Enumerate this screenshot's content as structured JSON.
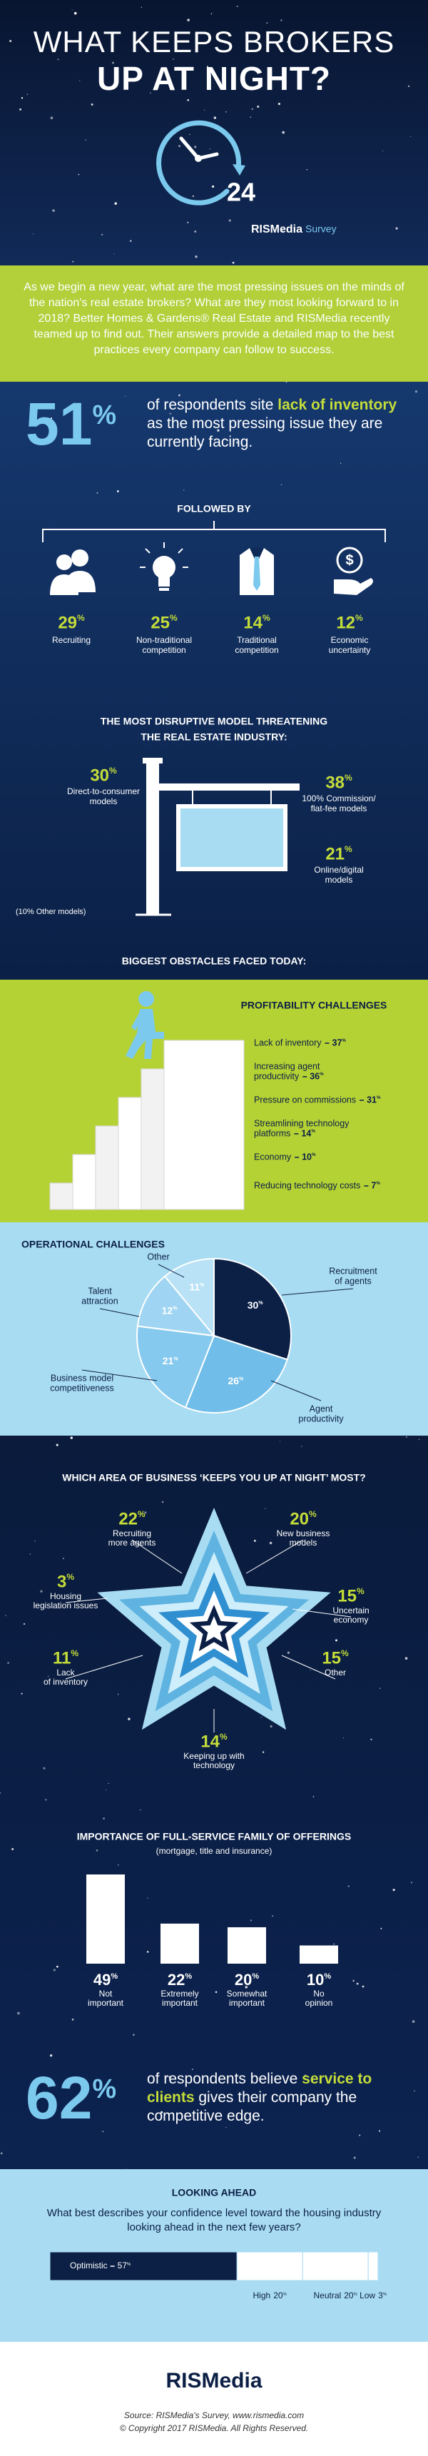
{
  "header": {
    "title": [
      "WHAT KEEPS BROKERS",
      "UP AT NIGHT?"
    ],
    "clock": "24",
    "brand": "RISMedia",
    "brand_tag": "Survey"
  },
  "intro": "As we begin a new year, what are the most pressing issues on the minds of the nation's real estate brokers? What are they most looking forward to in 2018? Better Homes & Gardens® Real Estate and RISMedia recently teamed up to find out. Their answers provide a detailed map to the best practices every company can follow to success.",
  "lead": {
    "pct": "51%",
    "before": "of respondents site",
    "highlight": "lack of inventory",
    "after": "as the most pressing issue they are currently facing."
  },
  "followed_by": {
    "title": "FOLLOWED BY",
    "items": [
      {
        "pct": "29%",
        "label": [
          "Recruiting"
        ]
      },
      {
        "pct": "25%",
        "label": [
          "Non-traditional",
          "competition"
        ]
      },
      {
        "pct": "14%",
        "label": [
          "Traditional",
          "competition"
        ]
      },
      {
        "pct": "12%",
        "label": [
          "Economic",
          "uncertainty"
        ]
      }
    ]
  },
  "disruptive": {
    "title": [
      "THE MOST DISRUPTIVE MODEL THREATENING",
      "THE REAL ESTATE INDUSTRY:"
    ],
    "items": [
      {
        "pct": "30%",
        "label": [
          "Direct-to-consumer",
          "models"
        ]
      },
      {
        "pct": "38%",
        "label": [
          "100% Commission/",
          "flat-fee models"
        ]
      },
      {
        "pct": "21%",
        "label": [
          "Online/digital",
          "models"
        ]
      }
    ],
    "note": "(10% Other models)"
  },
  "obstacles_title": "BIGGEST OBSTACLES FACED TODAY:",
  "profitability": {
    "title": "PROFITABILITY CHALLENGES",
    "items": [
      {
        "label": [
          "Lack of inventory"
        ],
        "pct": "37%"
      },
      {
        "label": [
          "Increasing agent",
          "productivity"
        ],
        "pct": "36%"
      },
      {
        "label": [
          "Pressure on commissions"
        ],
        "pct": "31%"
      },
      {
        "label": [
          "Streamlining technology",
          "platforms"
        ],
        "pct": "14%"
      },
      {
        "label": [
          "Economy"
        ],
        "pct": "10%"
      },
      {
        "label": [
          "Reducing technology costs"
        ],
        "pct": "7%"
      }
    ]
  },
  "operational": {
    "title": "OPERATIONAL CHALLENGES",
    "type": "pie",
    "slices": [
      {
        "label": [
          "Recruitment",
          "of agents"
        ],
        "value": 30,
        "value_label": "30%",
        "color": "#0c1f45"
      },
      {
        "label": [
          "Agent",
          "productivity"
        ],
        "value": 26,
        "value_label": "26%",
        "color": "#6fbde8"
      },
      {
        "label": [
          "Business model",
          "competitiveness"
        ],
        "value": 21,
        "value_label": "21%",
        "color": "#86c9ee"
      },
      {
        "label": [
          "Talent",
          "attraction"
        ],
        "value": 12,
        "value_label": "12%",
        "color": "#9fd5f2"
      },
      {
        "label": [
          "Other"
        ],
        "value": 11,
        "value_label": "11%",
        "color": "#b9e2f6"
      }
    ]
  },
  "star": {
    "title": "WHICH AREA OF BUSINESS ‘KEEPS YOU UP AT NIGHT’ MOST?",
    "items": [
      {
        "pct": "22%",
        "label": [
          "Recruiting",
          "more agents"
        ]
      },
      {
        "pct": "20%",
        "label": [
          "New business",
          "models"
        ]
      },
      {
        "pct": "3%",
        "label": [
          "Housing",
          "legislation issues"
        ]
      },
      {
        "pct": "15%",
        "label": [
          "Uncertain",
          "economy"
        ]
      },
      {
        "pct": "11%",
        "label": [
          "Lack",
          "of inventory"
        ]
      },
      {
        "pct": "15%",
        "label": [
          "Other"
        ]
      },
      {
        "pct": "14%",
        "label": [
          "Keeping up with",
          "technology"
        ]
      }
    ]
  },
  "full_service": {
    "title": "IMPORTANCE OF FULL-SERVICE FAMILY OF OFFERINGS",
    "subtitle": "(mortgage, title and insurance)",
    "type": "bar",
    "categories": [
      [
        "Not",
        "important"
      ],
      [
        "Extremely",
        "important"
      ],
      [
        "Somewhat",
        "important"
      ],
      [
        "No",
        "opinion"
      ]
    ],
    "values": [
      49,
      22,
      20,
      10
    ],
    "value_labels": [
      "49%",
      "22%",
      "20%",
      "10%"
    ],
    "color": "#ffffff"
  },
  "edge": {
    "pct": "62%",
    "before": "of respondents believe",
    "highlight": "service to clients",
    "after": "gives their company the competitive edge."
  },
  "looking_ahead": {
    "title": "LOOKING AHEAD",
    "question": "What best describes your confidence level toward the housing industry looking ahead in the next few years?",
    "type": "stacked-bar",
    "segments": [
      {
        "name": "Optimistic",
        "value": 57,
        "value_label": "57%",
        "color": "#0c1f45"
      },
      {
        "name": "High",
        "value": 20,
        "value_label": "20%",
        "color": "#ffffff"
      },
      {
        "name": "Neutral",
        "value": 20,
        "value_label": "20%",
        "color": "#ffffff"
      },
      {
        "name": "Low",
        "value": 3,
        "value_label": "3%",
        "color": "#ffffff"
      }
    ]
  },
  "footer": {
    "brand": "RISMedia",
    "source": "Source: RISMedia's Survey, www.rismedia.com",
    "copyright": "© Copyright 2017 RISMedia. All Rights Reserved."
  }
}
